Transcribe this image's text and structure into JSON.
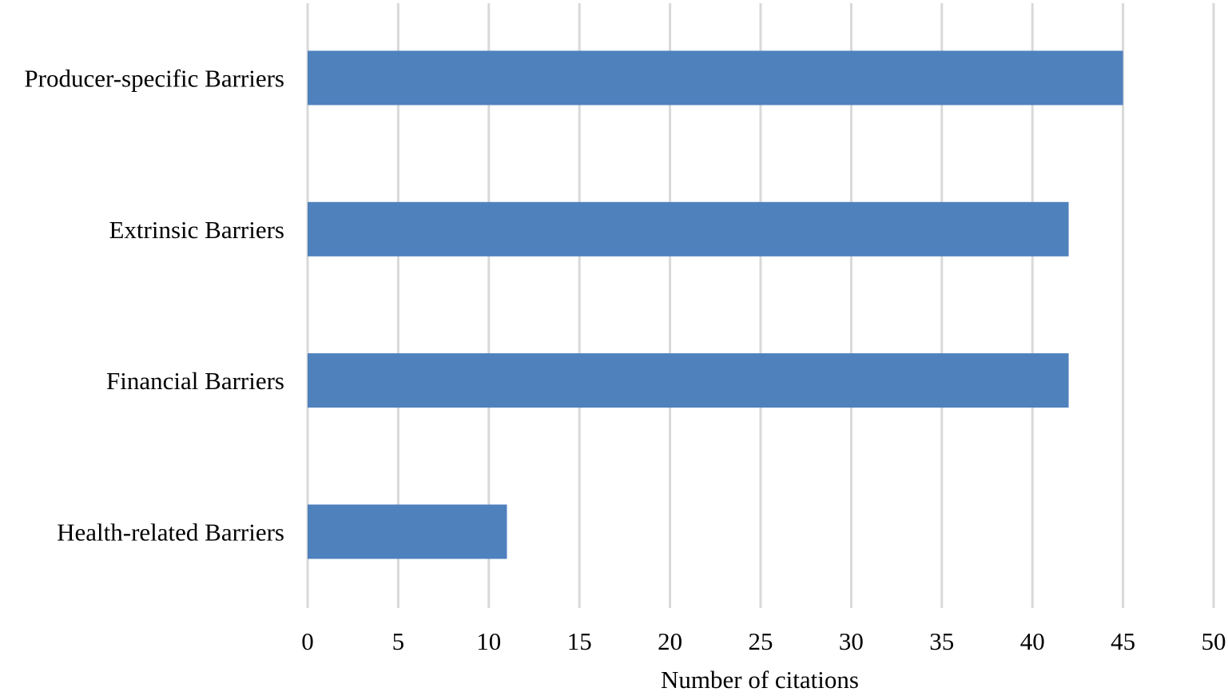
{
  "chart_data": {
    "type": "bar",
    "orientation": "horizontal",
    "categories": [
      "Producer-specific Barriers",
      "Extrinsic Barriers",
      "Financial Barriers",
      "Health-related Barriers"
    ],
    "values": [
      45,
      42,
      42,
      11
    ],
    "title": "",
    "xlabel": "Number of citations",
    "ylabel": "",
    "xlim": [
      0,
      50
    ],
    "xticks": [
      0,
      5,
      10,
      15,
      20,
      25,
      30,
      35,
      40,
      45,
      50
    ],
    "grid": true,
    "legend": "none",
    "bar_color": "#4f81bd",
    "grid_color": "#d9d9d9"
  }
}
